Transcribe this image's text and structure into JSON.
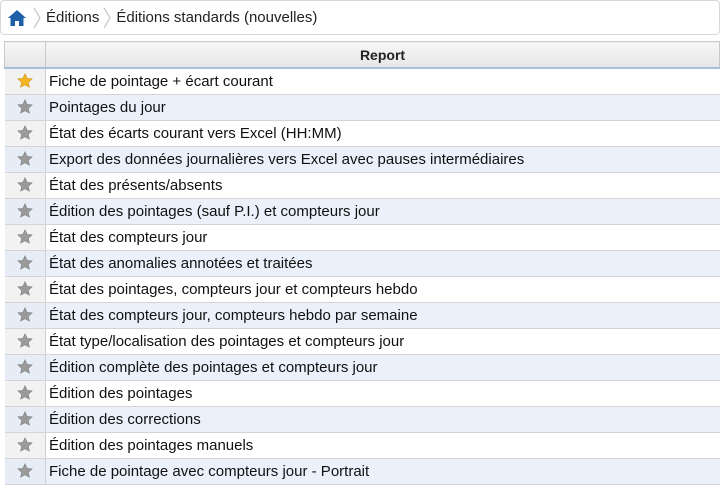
{
  "breadcrumb": {
    "items": [
      "Éditions",
      "Éditions standards (nouvelles)"
    ]
  },
  "table": {
    "header": "Report",
    "rows": [
      {
        "label": "Fiche de pointage + écart courant",
        "favorite": true
      },
      {
        "label": "Pointages du jour",
        "favorite": false
      },
      {
        "label": "État des écarts courant vers Excel (HH:MM)",
        "favorite": false
      },
      {
        "label": "Export des données journalières vers Excel avec pauses intermédiaires",
        "favorite": false
      },
      {
        "label": "État des présents/absents",
        "favorite": false
      },
      {
        "label": "Édition des pointages (sauf P.I.) et compteurs jour",
        "favorite": false
      },
      {
        "label": "État des compteurs jour",
        "favorite": false
      },
      {
        "label": "État des anomalies annotées et traitées",
        "favorite": false
      },
      {
        "label": "État des pointages, compteurs jour et compteurs hebdo",
        "favorite": false
      },
      {
        "label": "État des compteurs jour, compteurs hebdo par semaine",
        "favorite": false
      },
      {
        "label": "État type/localisation des pointages et compteurs jour",
        "favorite": false
      },
      {
        "label": "Édition complète des pointages et compteurs jour",
        "favorite": false
      },
      {
        "label": "Édition des pointages",
        "favorite": false
      },
      {
        "label": "Édition des corrections",
        "favorite": false
      },
      {
        "label": "Édition des pointages manuels",
        "favorite": false
      },
      {
        "label": "Fiche de pointage avec compteurs jour - Portrait",
        "favorite": false
      }
    ]
  },
  "colors": {
    "home_icon": "#1f5fa8",
    "star_favorite": "#f2b51f",
    "star_default": "#9a9a9a",
    "row_alt": "#eaf1fa"
  }
}
